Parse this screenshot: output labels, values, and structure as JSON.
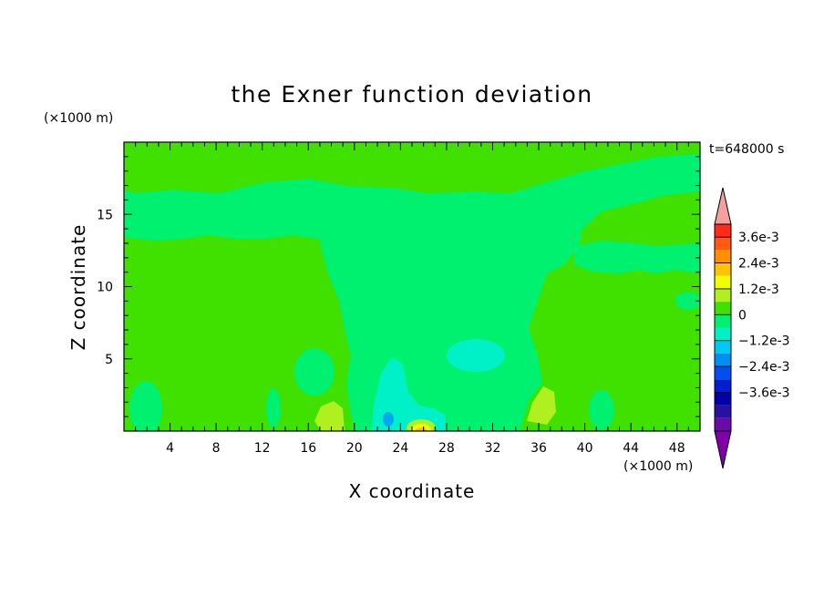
{
  "chart_data": {
    "type": "heatmap",
    "title": "the Exner function deviation",
    "xlabel": "X coordinate",
    "ylabel": "Z coordinate",
    "x_unit": "(×1000 m)",
    "y_unit": "(×1000 m)",
    "time_label": "t=648000 s",
    "xlim": [
      0,
      50
    ],
    "ylim": [
      0,
      20
    ],
    "x_ticks": [
      4,
      8,
      12,
      16,
      20,
      24,
      28,
      32,
      36,
      40,
      44,
      48
    ],
    "y_ticks": [
      5,
      10,
      15
    ],
    "colorbar": {
      "labels": [
        "3.6e-3",
        "2.4e-3",
        "1.2e-3",
        "0",
        "−1.2e-3",
        "−2.4e-3",
        "−3.6e-3"
      ],
      "levels": [
        0.0036,
        0.0024,
        0.0012,
        0,
        -0.0012,
        -0.0024,
        -0.0036
      ],
      "colors_top_to_bottom": [
        "#f4a0a0",
        "#ff2a1a",
        "#ff5a10",
        "#ff9000",
        "#ffc400",
        "#f0ff00",
        "#b0f020",
        "#40e000",
        "#00f070",
        "#00f0c8",
        "#00c8f0",
        "#0090f0",
        "#0050f0",
        "#0020d0",
        "#0000a8",
        "#2a10a0",
        "#6a0aa8",
        "#8000a8"
      ]
    },
    "regions": [
      {
        "name": "background",
        "value": 0.0002,
        "color": "#40e000"
      },
      {
        "name": "upper-negative-band",
        "value": -0.0004,
        "color": "#00f070",
        "x_range": [
          2,
          50
        ],
        "z_range": [
          12,
          18
        ]
      },
      {
        "name": "central-negative-column",
        "value": -0.0004,
        "color": "#00f070",
        "x_range": [
          17,
          37
        ],
        "z_range": [
          0,
          17
        ]
      },
      {
        "name": "cyan-core",
        "value": -0.0012,
        "color": "#00f0c8",
        "x": 23.5,
        "z": 1.5
      },
      {
        "name": "blue-spot",
        "value": -0.0018,
        "color": "#00c8f0",
        "x": 23,
        "z": 0.8
      },
      {
        "name": "positive-spot-1",
        "value": 0.0008,
        "color": "#b0f020",
        "x": 18,
        "z": 1
      },
      {
        "name": "positive-spot-2",
        "value": 0.0008,
        "color": "#b0f020",
        "x": 37,
        "z": 1.8
      },
      {
        "name": "max-spot",
        "value": 0.002,
        "color": "#ffc400",
        "x": 26,
        "z": 0.2
      }
    ]
  }
}
